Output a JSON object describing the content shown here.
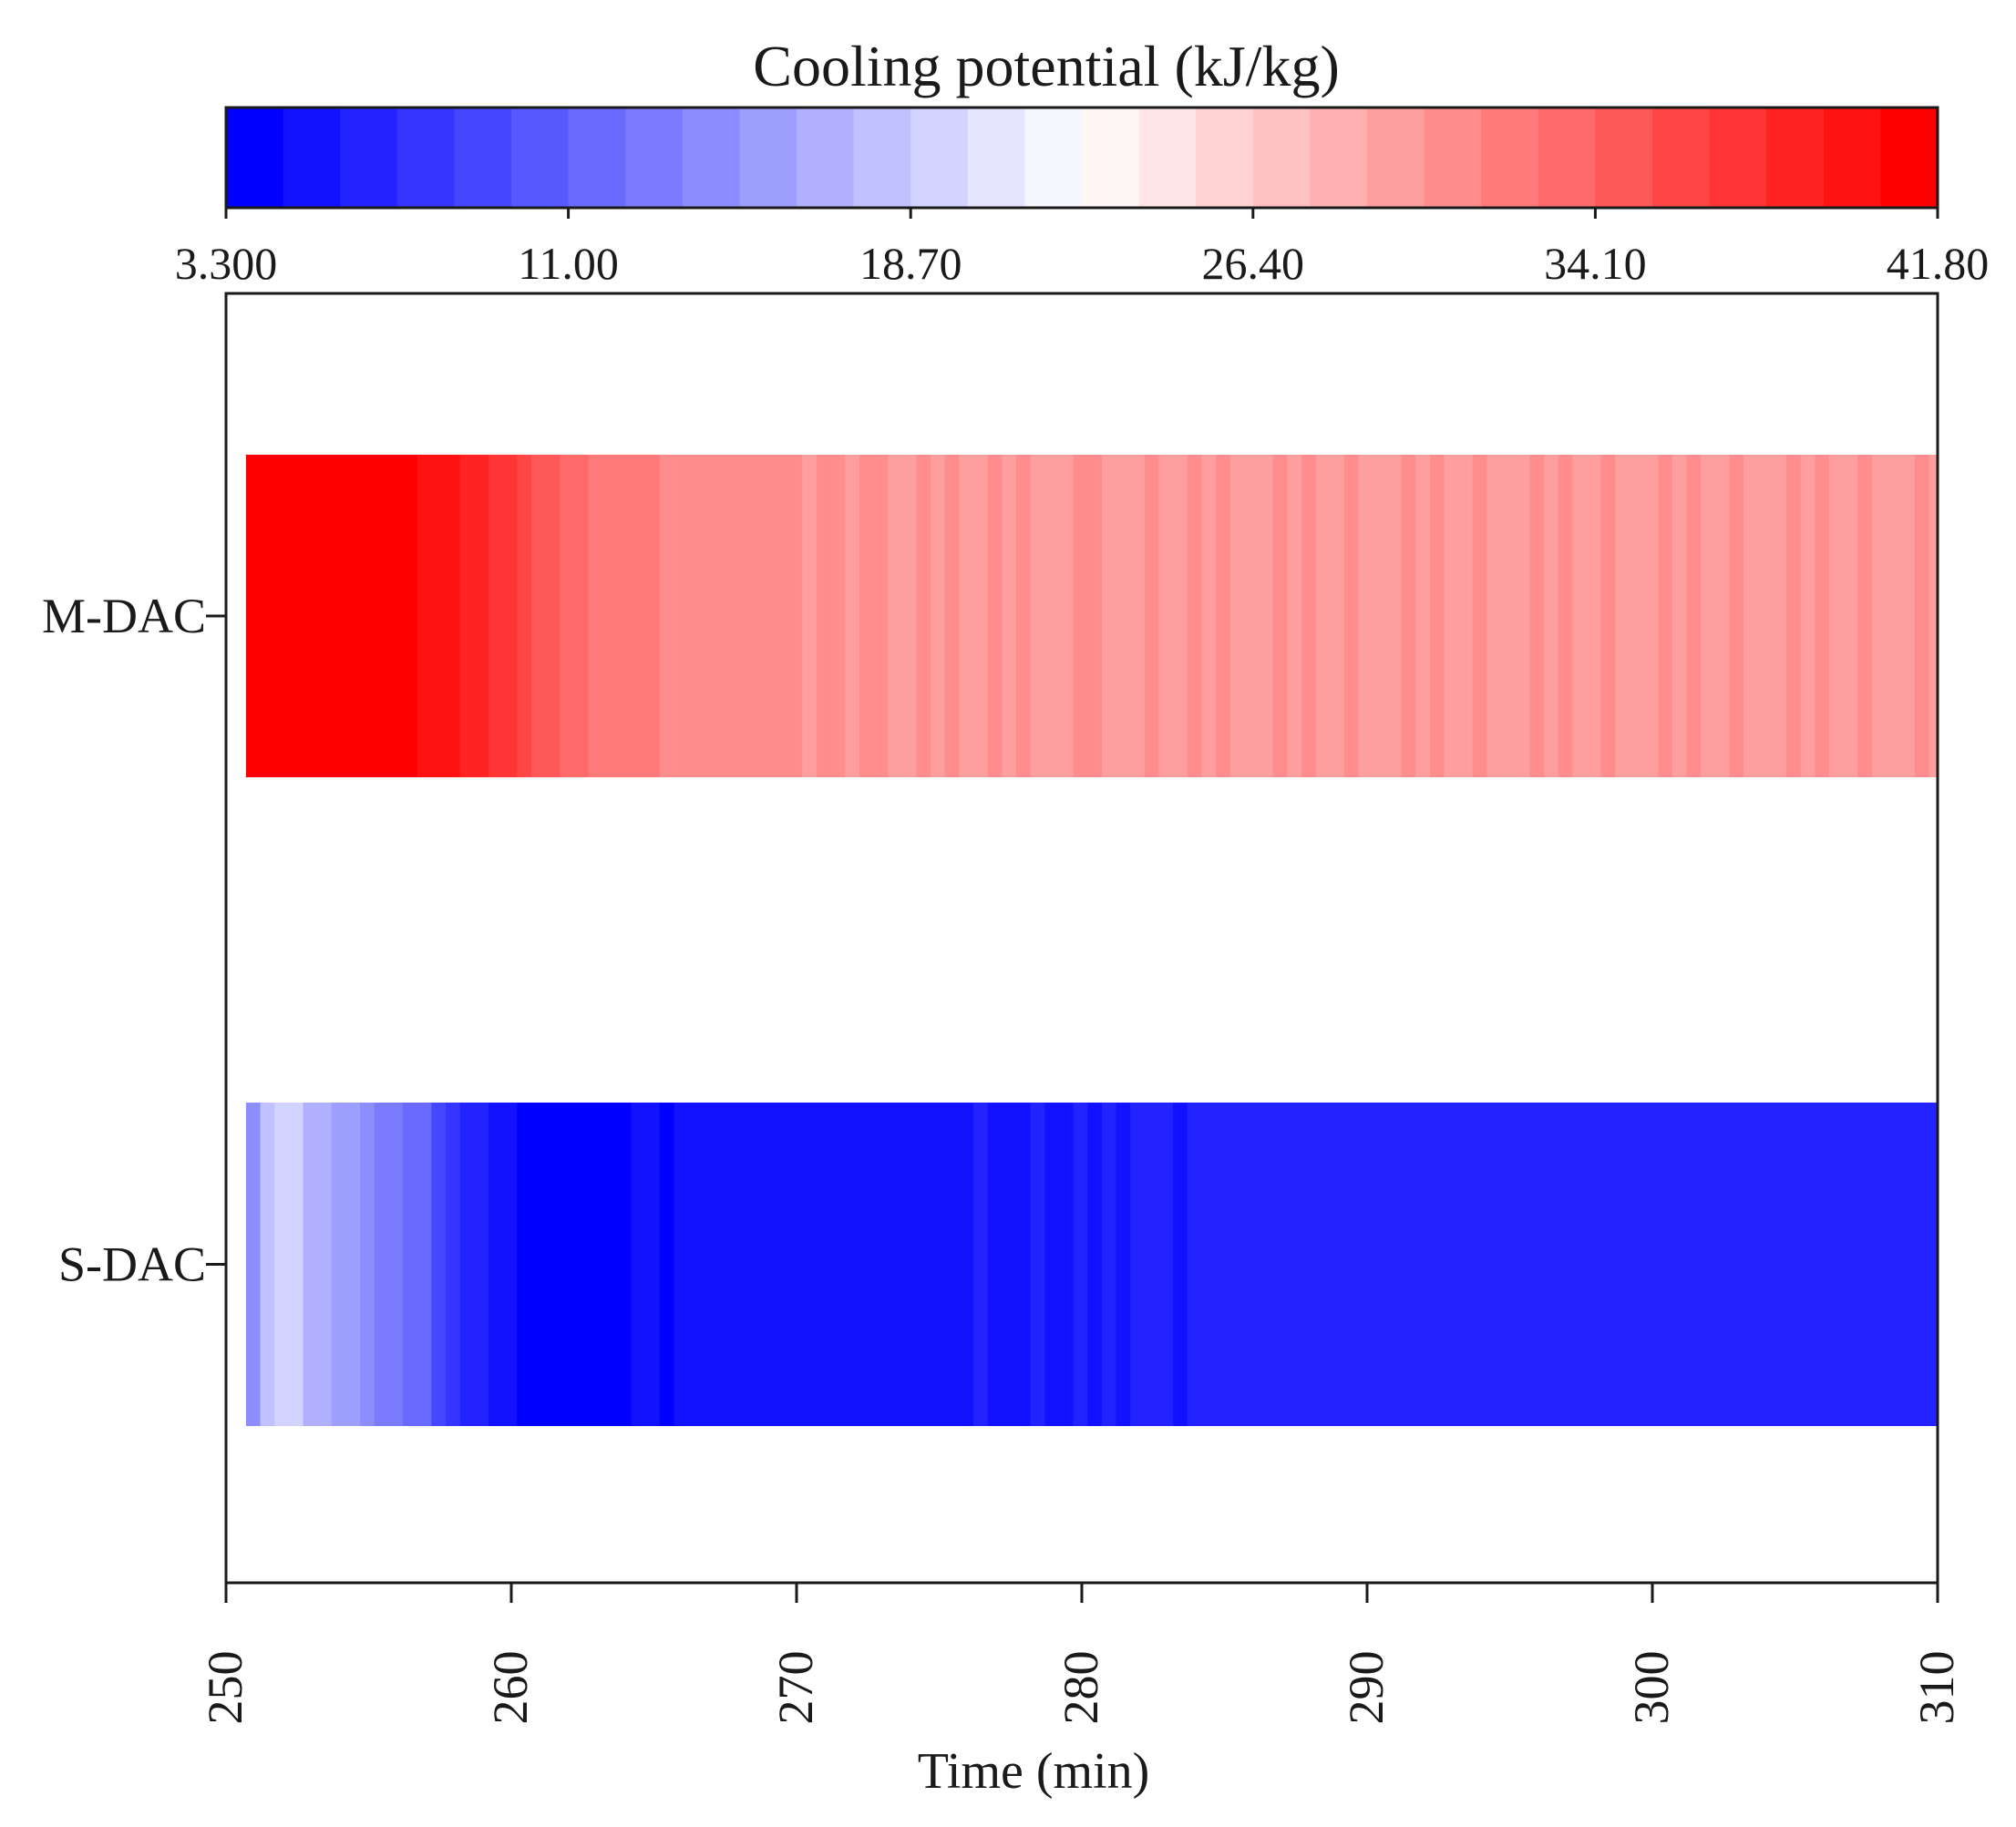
{
  "chart_data": {
    "type": "heatmap",
    "title": "",
    "colorbar": {
      "label": "Cooling potential (kJ/kg)",
      "min": 3.3,
      "max": 41.8,
      "levels": 30,
      "low_color": "#0000ff",
      "mid_color": "#ffffff",
      "high_color": "#ff0000",
      "tick_labels": [
        "3.300",
        "11.00",
        "18.70",
        "26.40",
        "34.10",
        "41.80"
      ],
      "tick_values": [
        3.3,
        11.0,
        18.7,
        26.4,
        34.1,
        41.8
      ]
    },
    "xlabel": "Time (min)",
    "xlim": [
      250,
      310
    ],
    "x_tick_values": [
      250,
      260,
      270,
      280,
      290,
      300,
      310
    ],
    "x_tick_labels": [
      "250",
      "260",
      "270",
      "280",
      "290",
      "300",
      "310"
    ],
    "start_time": 250.7,
    "step_min": 0.5,
    "series": [
      {
        "name": "M-DAC",
        "values": [
          41.8,
          41.1,
          41.6,
          41.5,
          41.4,
          41.7,
          41.8,
          40.9,
          41.2,
          41.3,
          41.1,
          41.5,
          40.5,
          40.3,
          39.6,
          38.6,
          38.9,
          37.9,
          37.4,
          35.9,
          35.1,
          34.8,
          33.2,
          33.9,
          32.1,
          32.4,
          32.0,
          31.6,
          31.9,
          31.4,
          31.2,
          31.1,
          31.3,
          30.8,
          31.0,
          31.5,
          30.9,
          30.7,
          30.6,
          30.1,
          30.3,
          30.4,
          30.2,
          30.3,
          30.5,
          30.1,
          30.2,
          30.4,
          30.0,
          30.3,
          30.2,
          30.1,
          30.4,
          30.2,
          30.3,
          30.1,
          30.0,
          30.2,
          30.4,
          30.3,
          30.1,
          30.2,
          30.0,
          30.3,
          30.2,
          30.1,
          30.4,
          30.2,
          30.3,
          30.1,
          30.2,
          30.0,
          30.3,
          30.2,
          30.4,
          30.1,
          30.2,
          30.3,
          30.0,
          30.2,
          30.1,
          30.3,
          30.2,
          30.4,
          30.1,
          30.2,
          30.3,
          30.0,
          30.2,
          30.1,
          30.3,
          30.2,
          30.4,
          30.1,
          30.2,
          30.3,
          30.0,
          30.2,
          30.1,
          30.3,
          30.2,
          30.4,
          30.1,
          30.2,
          30.3,
          30.0,
          30.2,
          30.1,
          30.3,
          30.2,
          30.4,
          30.1,
          30.2,
          30.3,
          30.0,
          30.2,
          30.1,
          30.3,
          30.2
        ]
      },
      {
        "name": "S-DAC",
        "values": [
          13.6,
          17.9,
          19.6,
          18.8,
          16.4,
          16.9,
          15.4,
          14.9,
          14.3,
          12.7,
          12.4,
          12.1,
          11.6,
          9.1,
          7.6,
          6.4,
          7.0,
          5.6,
          4.7,
          4.2,
          3.5,
          3.3,
          3.4,
          3.6,
          3.3,
          4.1,
          4.3,
          4.6,
          5.0,
          4.4,
          4.9,
          5.2,
          5.0,
          5.4,
          5.1,
          5.0,
          5.3,
          5.2,
          5.5,
          5.1,
          5.3,
          5.0,
          5.6,
          5.3,
          5.5,
          5.2,
          5.4,
          5.8,
          5.3,
          5.6,
          5.5,
          6.1,
          5.6,
          5.8,
          5.5,
          5.9,
          5.6,
          5.8,
          6.0,
          5.7,
          5.9,
          5.8,
          6.2,
          5.9,
          6.1,
          5.8,
          6.0,
          6.2,
          5.9,
          6.1,
          6.0,
          6.2,
          6.0,
          6.1,
          5.9,
          6.2,
          6.0,
          6.3,
          6.1,
          6.0,
          6.2,
          6.1,
          6.3,
          6.0,
          6.2,
          6.1,
          6.3,
          6.2,
          6.0,
          6.2,
          6.1,
          6.3,
          6.2,
          6.1,
          6.3,
          6.2,
          6.0,
          6.2,
          6.3,
          6.1,
          6.2,
          6.3,
          6.1,
          6.2,
          6.3,
          6.2,
          6.1,
          6.3,
          6.2,
          6.1,
          6.3,
          6.2,
          6.1,
          6.3,
          6.2,
          6.2,
          6.3,
          6.2,
          6.3
        ]
      }
    ]
  }
}
